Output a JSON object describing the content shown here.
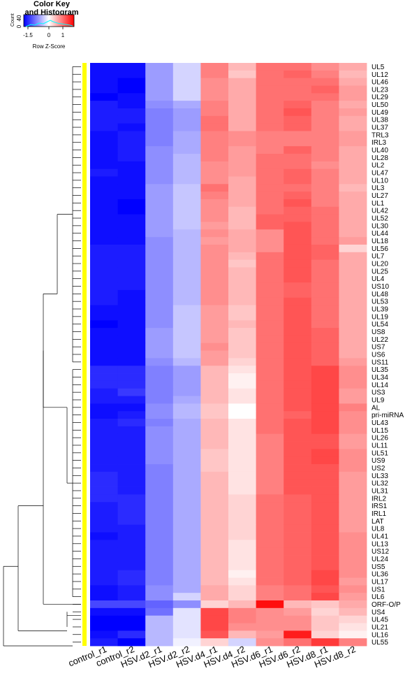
{
  "key": {
    "title_line1": "Color Key",
    "title_line2": "and Histogram",
    "ylabel": "Count",
    "y_ticks": [
      "0",
      "40"
    ],
    "x_ticks": [
      {
        "label": "-1.5",
        "value": -1.5
      },
      {
        "label": "0",
        "value": 0
      },
      {
        "label": "1",
        "value": 1
      }
    ],
    "xlabel": "Row Z-Score",
    "range": [
      -1.8,
      1.8
    ]
  },
  "colors": {
    "low": "#0000ff",
    "mid": "#ffffff",
    "high": "#ff0000",
    "side_bar": "#ffff00",
    "dendrogram": "#000000"
  },
  "chart_data": {
    "type": "heatmap",
    "title": "",
    "xlabel": "",
    "ylabel": "",
    "value_scale": "row z-score",
    "color_range": [
      -1.8,
      1.8
    ],
    "columns": [
      "control_r1",
      "control_r2",
      "HSV.d2_r1",
      "HSV.d2_r2",
      "HSV.d4_r1",
      "HSV.d4_r2",
      "HSV.d6_r1",
      "HSV.d6_r2",
      "HSV.d8_r1",
      "HSV.d8_r2"
    ],
    "rows": [
      {
        "gene": "UL5",
        "values": [
          -1.7,
          -1.7,
          -0.7,
          -0.3,
          0.9,
          0.5,
          1.0,
          1.0,
          0.8,
          0.6
        ]
      },
      {
        "gene": "UL12",
        "values": [
          -1.7,
          -1.7,
          -0.7,
          -0.3,
          0.9,
          0.4,
          1.0,
          1.1,
          0.9,
          0.5
        ]
      },
      {
        "gene": "UL46",
        "values": [
          -1.7,
          -1.8,
          -0.7,
          -0.3,
          0.8,
          0.6,
          1.0,
          1.0,
          1.0,
          0.6
        ]
      },
      {
        "gene": "UL23",
        "values": [
          -1.7,
          -1.8,
          -0.7,
          -0.3,
          0.8,
          0.6,
          1.0,
          1.0,
          1.1,
          0.7
        ]
      },
      {
        "gene": "UL29",
        "values": [
          -1.8,
          -1.7,
          -0.7,
          -0.3,
          0.8,
          0.6,
          1.0,
          1.0,
          1.0,
          0.7
        ]
      },
      {
        "gene": "UL50",
        "values": [
          -1.6,
          -1.7,
          -0.8,
          -0.6,
          0.9,
          0.6,
          1.0,
          1.1,
          0.9,
          0.6
        ]
      },
      {
        "gene": "UL49",
        "values": [
          -1.6,
          -1.6,
          -0.9,
          -0.7,
          0.9,
          0.6,
          1.0,
          1.2,
          0.9,
          0.7
        ]
      },
      {
        "gene": "UL38",
        "values": [
          -1.6,
          -1.6,
          -0.9,
          -0.7,
          1.0,
          0.6,
          1.0,
          1.1,
          0.9,
          0.6
        ]
      },
      {
        "gene": "UL37",
        "values": [
          -1.6,
          -1.7,
          -0.9,
          -0.7,
          1.0,
          0.6,
          1.0,
          1.1,
          0.9,
          0.6
        ]
      },
      {
        "gene": "TRL3",
        "values": [
          -1.7,
          -1.6,
          -0.9,
          -0.6,
          0.9,
          0.8,
          0.9,
          0.9,
          0.9,
          0.7
        ]
      },
      {
        "gene": "IRL3",
        "values": [
          -1.7,
          -1.6,
          -0.9,
          -0.6,
          0.9,
          0.8,
          0.9,
          0.9,
          0.9,
          0.7
        ]
      },
      {
        "gene": "UL40",
        "values": [
          -1.7,
          -1.6,
          -0.8,
          -0.6,
          0.9,
          0.7,
          0.9,
          1.1,
          0.9,
          0.6
        ]
      },
      {
        "gene": "UL28",
        "values": [
          -1.7,
          -1.6,
          -0.8,
          -0.5,
          0.9,
          0.7,
          1.0,
          1.0,
          0.9,
          0.6
        ]
      },
      {
        "gene": "UL2",
        "values": [
          -1.7,
          -1.7,
          -0.8,
          -0.5,
          0.8,
          0.7,
          1.0,
          1.0,
          0.8,
          0.6
        ]
      },
      {
        "gene": "UL47",
        "values": [
          -1.6,
          -1.7,
          -0.8,
          -0.5,
          0.8,
          0.7,
          1.0,
          1.1,
          0.9,
          0.6
        ]
      },
      {
        "gene": "UL10",
        "values": [
          -1.7,
          -1.7,
          -0.8,
          -0.5,
          0.8,
          0.6,
          1.0,
          1.1,
          0.9,
          0.6
        ]
      },
      {
        "gene": "UL3",
        "values": [
          -1.7,
          -1.7,
          -0.7,
          -0.4,
          1.0,
          0.6,
          1.0,
          1.0,
          0.9,
          0.5
        ]
      },
      {
        "gene": "UL27",
        "values": [
          -1.7,
          -1.7,
          -0.7,
          -0.4,
          0.9,
          0.6,
          1.0,
          1.1,
          0.9,
          0.6
        ]
      },
      {
        "gene": "UL1",
        "values": [
          -1.7,
          -1.8,
          -0.7,
          -0.4,
          0.8,
          0.6,
          1.0,
          1.2,
          0.9,
          0.6
        ]
      },
      {
        "gene": "UL42",
        "values": [
          -1.7,
          -1.8,
          -0.7,
          -0.4,
          0.8,
          0.5,
          1.0,
          1.1,
          1.0,
          0.6
        ]
      },
      {
        "gene": "UL52",
        "values": [
          -1.7,
          -1.7,
          -0.7,
          -0.4,
          0.8,
          0.5,
          1.1,
          1.1,
          1.0,
          0.6
        ]
      },
      {
        "gene": "UL30",
        "values": [
          -1.7,
          -1.7,
          -0.7,
          -0.4,
          0.7,
          0.5,
          1.1,
          1.2,
          1.0,
          0.6
        ]
      },
      {
        "gene": "UL44",
        "values": [
          -1.7,
          -1.7,
          -0.7,
          -0.5,
          0.8,
          0.6,
          0.8,
          1.2,
          1.0,
          0.6
        ]
      },
      {
        "gene": "UL18",
        "values": [
          -1.7,
          -1.7,
          -0.8,
          -0.5,
          0.7,
          0.6,
          0.8,
          1.2,
          1.0,
          0.7
        ]
      },
      {
        "gene": "UL56",
        "values": [
          -1.6,
          -1.6,
          -0.8,
          -0.5,
          0.8,
          0.6,
          0.8,
          1.2,
          1.1,
          0.3
        ]
      },
      {
        "gene": "UL7",
        "values": [
          -1.6,
          -1.6,
          -0.8,
          -0.5,
          0.8,
          0.5,
          1.0,
          1.2,
          1.1,
          0.6
        ]
      },
      {
        "gene": "UL20",
        "values": [
          -1.6,
          -1.6,
          -0.8,
          -0.5,
          0.8,
          0.4,
          1.0,
          1.2,
          1.0,
          0.6
        ]
      },
      {
        "gene": "UL25",
        "values": [
          -1.6,
          -1.6,
          -0.8,
          -0.5,
          0.8,
          0.5,
          1.0,
          1.2,
          1.0,
          0.6
        ]
      },
      {
        "gene": "UL4",
        "values": [
          -1.6,
          -1.6,
          -0.8,
          -0.5,
          0.8,
          0.5,
          1.0,
          1.2,
          1.0,
          0.6
        ]
      },
      {
        "gene": "US10",
        "values": [
          -1.6,
          -1.6,
          -0.8,
          -0.5,
          0.8,
          0.5,
          1.0,
          1.1,
          1.0,
          0.6
        ]
      },
      {
        "gene": "UL48",
        "values": [
          -1.6,
          -1.7,
          -0.8,
          -0.5,
          0.8,
          0.5,
          1.0,
          1.1,
          1.0,
          0.6
        ]
      },
      {
        "gene": "UL53",
        "values": [
          -1.6,
          -1.7,
          -0.8,
          -0.5,
          0.8,
          0.5,
          1.0,
          1.2,
          1.0,
          0.6
        ]
      },
      {
        "gene": "UL39",
        "values": [
          -1.7,
          -1.7,
          -0.8,
          -0.4,
          0.7,
          0.4,
          1.0,
          1.2,
          1.0,
          0.6
        ]
      },
      {
        "gene": "UL19",
        "values": [
          -1.7,
          -1.7,
          -0.8,
          -0.4,
          0.7,
          0.4,
          1.0,
          1.2,
          1.0,
          0.6
        ]
      },
      {
        "gene": "UL54",
        "values": [
          -1.8,
          -1.7,
          -0.8,
          -0.4,
          0.7,
          0.5,
          1.0,
          1.2,
          1.0,
          0.6
        ]
      },
      {
        "gene": "US8",
        "values": [
          -1.7,
          -1.7,
          -0.7,
          -0.4,
          0.7,
          0.4,
          1.0,
          1.2,
          1.1,
          0.6
        ]
      },
      {
        "gene": "UL22",
        "values": [
          -1.7,
          -1.7,
          -0.7,
          -0.4,
          0.7,
          0.4,
          1.0,
          1.2,
          1.1,
          0.6
        ]
      },
      {
        "gene": "US7",
        "values": [
          -1.7,
          -1.7,
          -0.7,
          -0.4,
          0.8,
          0.4,
          1.0,
          1.2,
          1.1,
          0.6
        ]
      },
      {
        "gene": "US6",
        "values": [
          -1.7,
          -1.7,
          -0.7,
          -0.4,
          0.7,
          0.4,
          1.0,
          1.2,
          1.1,
          0.6
        ]
      },
      {
        "gene": "US11",
        "values": [
          -1.7,
          -1.7,
          -0.8,
          -0.5,
          0.7,
          0.3,
          1.0,
          1.2,
          1.1,
          0.7
        ]
      },
      {
        "gene": "UL35",
        "values": [
          -1.5,
          -1.5,
          -0.9,
          -0.7,
          0.5,
          0.2,
          1.0,
          1.2,
          1.3,
          0.8
        ]
      },
      {
        "gene": "UL34",
        "values": [
          -1.5,
          -1.5,
          -0.9,
          -0.7,
          0.5,
          0.1,
          1.0,
          1.2,
          1.3,
          0.8
        ]
      },
      {
        "gene": "UL14",
        "values": [
          -1.5,
          -1.5,
          -0.9,
          -0.7,
          0.5,
          0.1,
          1.0,
          1.2,
          1.3,
          0.8
        ]
      },
      {
        "gene": "US3",
        "values": [
          -1.6,
          -1.4,
          -0.9,
          -0.7,
          0.5,
          0.2,
          1.0,
          1.2,
          1.3,
          0.7
        ]
      },
      {
        "gene": "UL9",
        "values": [
          -1.6,
          -1.6,
          -0.9,
          -0.6,
          0.5,
          0.2,
          1.0,
          1.2,
          1.3,
          0.7
        ]
      },
      {
        "gene": "AL",
        "values": [
          -1.7,
          -1.7,
          -0.8,
          -0.5,
          0.4,
          0.0,
          1.0,
          1.2,
          1.3,
          0.9
        ]
      },
      {
        "gene": "pri-miRNA",
        "values": [
          -1.7,
          -1.6,
          -0.8,
          -0.5,
          0.4,
          0.0,
          1.0,
          1.1,
          1.3,
          0.8
        ]
      },
      {
        "gene": "UL43",
        "values": [
          -1.6,
          -1.5,
          -0.9,
          -0.6,
          0.5,
          0.2,
          1.0,
          1.2,
          1.3,
          0.8
        ]
      },
      {
        "gene": "UL15",
        "values": [
          -1.6,
          -1.6,
          -0.8,
          -0.6,
          0.5,
          0.2,
          1.0,
          1.2,
          1.3,
          0.8
        ]
      },
      {
        "gene": "UL26",
        "values": [
          -1.6,
          -1.6,
          -0.8,
          -0.6,
          0.5,
          0.2,
          0.9,
          1.2,
          1.2,
          0.7
        ]
      },
      {
        "gene": "UL11",
        "values": [
          -1.6,
          -1.6,
          -0.8,
          -0.6,
          0.5,
          0.2,
          0.9,
          1.2,
          1.2,
          0.7
        ]
      },
      {
        "gene": "UL51",
        "values": [
          -1.6,
          -1.6,
          -0.8,
          -0.6,
          0.4,
          0.2,
          0.9,
          1.2,
          1.3,
          0.8
        ]
      },
      {
        "gene": "US9",
        "values": [
          -1.6,
          -1.6,
          -0.8,
          -0.6,
          0.4,
          0.2,
          0.9,
          1.2,
          1.3,
          0.8
        ]
      },
      {
        "gene": "US2",
        "values": [
          -1.6,
          -1.6,
          -0.9,
          -0.6,
          0.4,
          0.2,
          0.9,
          1.2,
          1.2,
          0.8
        ]
      },
      {
        "gene": "UL33",
        "values": [
          -1.5,
          -1.6,
          -0.9,
          -0.6,
          0.5,
          0.2,
          0.9,
          1.2,
          1.2,
          0.7
        ]
      },
      {
        "gene": "UL32",
        "values": [
          -1.5,
          -1.6,
          -0.9,
          -0.6,
          0.5,
          0.2,
          0.9,
          1.2,
          1.2,
          0.7
        ]
      },
      {
        "gene": "UL31",
        "values": [
          -1.5,
          -1.6,
          -0.9,
          -0.6,
          0.5,
          0.2,
          0.9,
          1.2,
          1.2,
          0.7
        ]
      },
      {
        "gene": "IRL2",
        "values": [
          -1.5,
          -1.5,
          -0.9,
          -0.6,
          0.5,
          0.3,
          1.0,
          1.1,
          1.2,
          0.7
        ]
      },
      {
        "gene": "IRS1",
        "values": [
          -1.6,
          -1.5,
          -0.9,
          -0.6,
          0.5,
          0.3,
          1.0,
          1.1,
          1.2,
          0.7
        ]
      },
      {
        "gene": "IRL1",
        "values": [
          -1.6,
          -1.5,
          -0.9,
          -0.6,
          0.5,
          0.3,
          1.0,
          1.1,
          1.2,
          0.7
        ]
      },
      {
        "gene": "LAT",
        "values": [
          -1.6,
          -1.5,
          -0.9,
          -0.6,
          0.5,
          0.3,
          1.0,
          1.1,
          1.2,
          0.7
        ]
      },
      {
        "gene": "UL8",
        "values": [
          -1.6,
          -1.6,
          -0.9,
          -0.6,
          0.5,
          0.3,
          1.0,
          1.1,
          1.2,
          0.7
        ]
      },
      {
        "gene": "UL41",
        "values": [
          -1.7,
          -1.6,
          -0.9,
          -0.6,
          0.5,
          0.3,
          1.0,
          1.1,
          1.2,
          0.8
        ]
      },
      {
        "gene": "UL13",
        "values": [
          -1.6,
          -1.6,
          -0.9,
          -0.6,
          0.5,
          0.2,
          1.0,
          1.1,
          1.2,
          0.8
        ]
      },
      {
        "gene": "US12",
        "values": [
          -1.6,
          -1.6,
          -0.9,
          -0.6,
          0.5,
          0.2,
          1.0,
          1.1,
          1.2,
          0.8
        ]
      },
      {
        "gene": "UL24",
        "values": [
          -1.6,
          -1.6,
          -0.9,
          -0.6,
          0.5,
          0.2,
          1.0,
          1.1,
          1.2,
          0.8
        ]
      },
      {
        "gene": "US5",
        "values": [
          -1.6,
          -1.6,
          -0.9,
          -0.6,
          0.5,
          0.2,
          1.0,
          1.1,
          1.2,
          0.8
        ]
      },
      {
        "gene": "UL36",
        "values": [
          -1.6,
          -1.5,
          -0.9,
          -0.6,
          0.5,
          0.1,
          1.0,
          1.1,
          1.3,
          0.8
        ]
      },
      {
        "gene": "UL17",
        "values": [
          -1.6,
          -1.5,
          -0.9,
          -0.6,
          0.5,
          0.2,
          1.0,
          1.1,
          1.3,
          0.7
        ]
      },
      {
        "gene": "US1",
        "values": [
          -1.7,
          -1.6,
          -0.8,
          -0.6,
          0.6,
          0.3,
          0.9,
          1.0,
          1.2,
          0.8
        ]
      },
      {
        "gene": "UL6",
        "values": [
          -1.7,
          -1.6,
          -0.8,
          -0.3,
          0.6,
          0.3,
          0.9,
          1.0,
          1.3,
          0.7
        ]
      },
      {
        "gene": "ORF-O/P",
        "values": [
          -1.3,
          -1.3,
          -1.1,
          -0.8,
          0.3,
          0.5,
          1.7,
          0.5,
          0.4,
          0.6
        ]
      },
      {
        "gene": "US4",
        "values": [
          -1.7,
          -1.7,
          -1.0,
          -0.2,
          1.3,
          0.9,
          0.8,
          0.7,
          0.3,
          0.5
        ]
      },
      {
        "gene": "UL45",
        "values": [
          -1.8,
          -1.8,
          -0.5,
          -0.2,
          1.3,
          0.9,
          0.8,
          0.8,
          0.4,
          0.3
        ]
      },
      {
        "gene": "UL21",
        "values": [
          -1.8,
          -1.8,
          -0.5,
          -0.2,
          1.3,
          0.8,
          0.8,
          0.8,
          0.4,
          0.2
        ]
      },
      {
        "gene": "UL16",
        "values": [
          -1.7,
          -1.5,
          -0.5,
          -0.2,
          1.2,
          0.5,
          0.7,
          1.6,
          0.3,
          0.1
        ]
      },
      {
        "gene": "UL55",
        "values": [
          -1.6,
          -1.9,
          -0.5,
          -0.1,
          0.3,
          -0.3,
          0.8,
          1.0,
          1.4,
          0.9
        ]
      }
    ]
  }
}
